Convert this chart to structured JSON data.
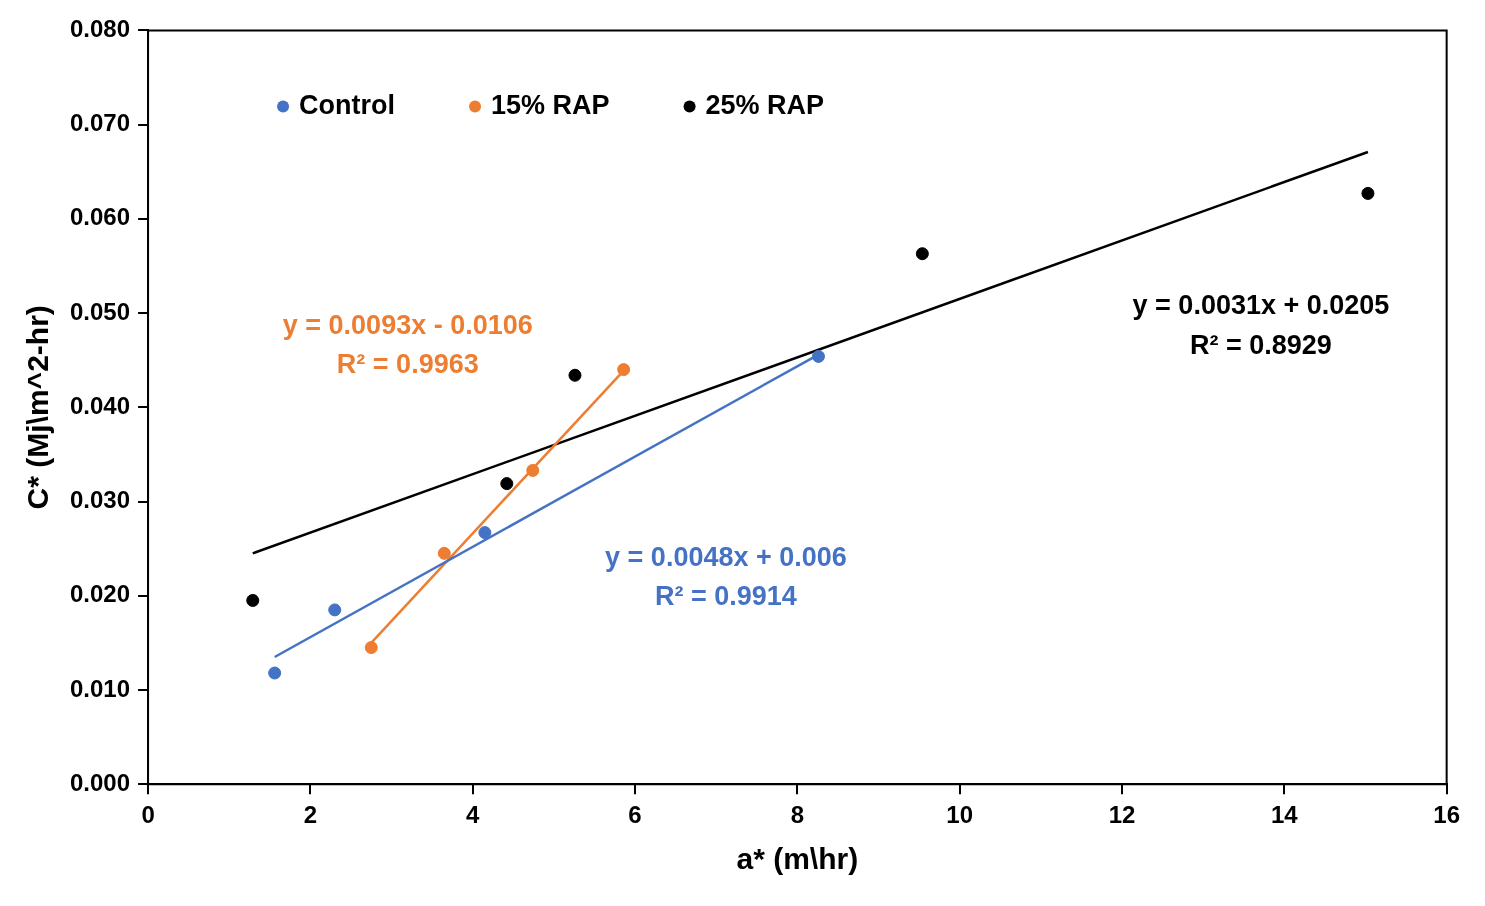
{
  "chart_data": {
    "type": "scatter",
    "xlabel": "a* (m\\hr)",
    "ylabel": "C* (Mj\\m^2-hr)",
    "xlim": [
      0,
      16
    ],
    "xticks": [
      0,
      2,
      4,
      6,
      8,
      10,
      12,
      14,
      16
    ],
    "ylim": [
      0,
      0.08
    ],
    "yticks": [
      {
        "value": 0,
        "label": "0.000"
      },
      {
        "value": 0.01,
        "label": "0.010"
      },
      {
        "value": 0.02,
        "label": "0.020"
      },
      {
        "value": 0.03,
        "label": "0.030"
      },
      {
        "value": 0.04,
        "label": "0.040"
      },
      {
        "value": 0.05,
        "label": "0.050"
      },
      {
        "value": 0.06,
        "label": "0.060"
      },
      {
        "value": 0.07,
        "label": "0.070"
      },
      {
        "value": 0.08,
        "label": "0.080"
      }
    ],
    "grid": false,
    "legend": "top left",
    "marker": "circle",
    "series": [
      {
        "name": "Control",
        "color": "#4472c4",
        "x": [
          1.56,
          2.3,
          4.15,
          8.26
        ],
        "values": [
          0.0118,
          0.0185,
          0.0267,
          0.0454
        ]
      },
      {
        "name": "15% RAP",
        "color": "#ed7d31",
        "x": [
          2.75,
          3.65,
          4.74,
          5.86
        ],
        "values": [
          0.0145,
          0.0245,
          0.0333,
          0.044
        ]
      },
      {
        "name": "25% RAP",
        "color": "#000000",
        "x": [
          1.29,
          4.42,
          5.26,
          9.54,
          15.03
        ],
        "values": [
          0.0195,
          0.0319,
          0.0434,
          0.0563,
          0.0627
        ]
      },
      {
        "type": "line",
        "marker": "none",
        "color": "#4472c4",
        "x": [
          1.56,
          8.26
        ],
        "values": [
          0.0135,
          0.0456
        ]
      },
      {
        "type": "line",
        "marker": "none",
        "color": "#ed7d31",
        "x": [
          2.75,
          5.86
        ],
        "values": [
          0.015,
          0.0439
        ]
      },
      {
        "type": "line",
        "marker": "none",
        "color": "#000000",
        "x": [
          1.29,
          15.03
        ],
        "values": [
          0.0245,
          0.0671
        ]
      }
    ],
    "annotations": [
      "y = 0.0048x + 0.006",
      "R² = 0.9914",
      "y = 0.0093x - 0.0106",
      "R² = 0.9963",
      "y = 0.0031x + 0.0205",
      "R² = 0.8929"
    ]
  }
}
